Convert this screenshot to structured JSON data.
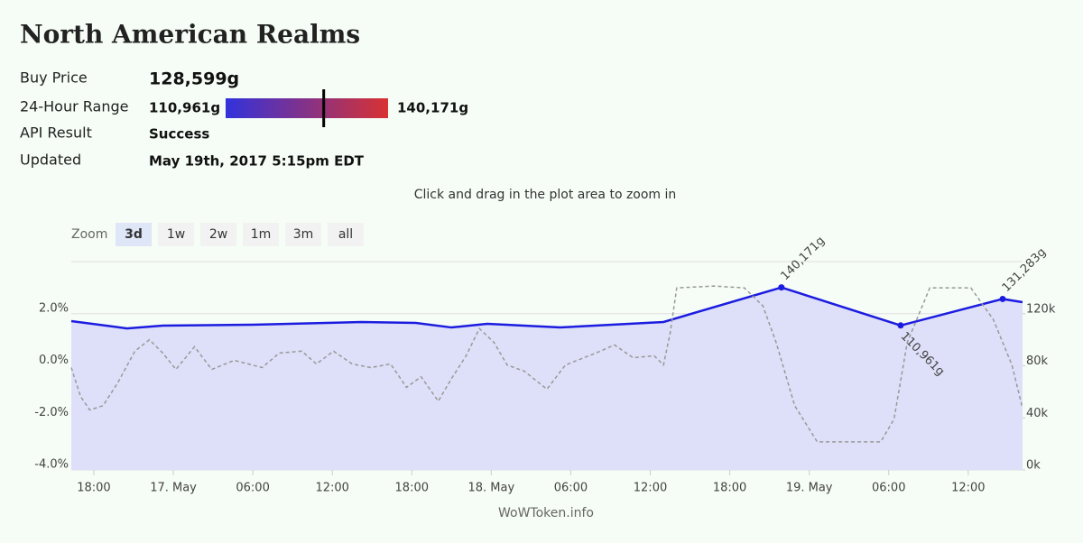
{
  "header": {
    "title": "North American Realms"
  },
  "info": {
    "buy_price": {
      "label": "Buy Price",
      "value": 128599,
      "text": "128,599g"
    },
    "range": {
      "label": "24-Hour Range",
      "low": {
        "value": 110961,
        "label": "110,961g"
      },
      "high": {
        "value": 140171,
        "label": "140,171g"
      }
    },
    "api": {
      "label": "API Result",
      "text": "Success"
    },
    "updated": {
      "label": "Updated",
      "text": "May 19th, 2017 5:15pm EDT"
    }
  },
  "chart_data": {
    "type": "line",
    "subtitle": "Click and drag in the plot area to zoom in",
    "credit": "WoWToken.info",
    "zoom": {
      "label": "Zoom",
      "options": [
        "3d",
        "1w",
        "2w",
        "1m",
        "3m",
        "all"
      ],
      "selected": 0
    },
    "xlim": [
      16.3,
      88.1
    ],
    "xticks": [
      {
        "value": 18,
        "label": "18:00"
      },
      {
        "value": 24,
        "label": "17. May"
      },
      {
        "value": 30,
        "label": "06:00"
      },
      {
        "value": 36,
        "label": "12:00"
      },
      {
        "value": 42,
        "label": "18:00"
      },
      {
        "value": 48,
        "label": "18. May"
      },
      {
        "value": 54,
        "label": "06:00"
      },
      {
        "value": 60,
        "label": "12:00"
      },
      {
        "value": 66,
        "label": "18:00"
      },
      {
        "value": 72,
        "label": "19. May"
      },
      {
        "value": 78,
        "label": "06:00"
      },
      {
        "value": 84,
        "label": "12:00"
      }
    ],
    "ylim": [
      -4,
      4
    ],
    "yticks": [
      {
        "value": -4,
        "label": "-4.0%"
      },
      {
        "value": -2,
        "label": "-2.0%"
      },
      {
        "value": 0,
        "label": "0.0%"
      },
      {
        "value": 2,
        "label": "2.0%"
      }
    ],
    "y2lim": [
      0,
      160000
    ],
    "y2ticks": [
      {
        "value": 0,
        "label": "0k"
      },
      {
        "value": 40000,
        "label": "40k"
      },
      {
        "value": 80000,
        "label": "80k"
      },
      {
        "value": 120000,
        "label": "120k"
      }
    ],
    "grid": true,
    "series": [
      {
        "color": "#1c1ce0",
        "fill": "#dde0f8",
        "axis": "y2",
        "x": [
          16.3,
          20.5,
          23.2,
          30,
          38.2,
          42.3,
          45,
          47.7,
          53.2,
          61,
          69.9,
          78.9,
          86.6,
          88.1
        ],
        "values": [
          114300,
          108700,
          110800,
          111500,
          113600,
          112900,
          109400,
          112200,
          109400,
          113600,
          140171,
          110961,
          131283,
          128800
        ],
        "value_labels": [
          null,
          null,
          null,
          null,
          null,
          null,
          null,
          null,
          null,
          null,
          "140,171g",
          "110,961g",
          "131,283g",
          null
        ]
      },
      {
        "color": "#999999",
        "dashed": true,
        "x": [
          16.3,
          17.0,
          17.7,
          18.7,
          19.8,
          21.1,
          22.2,
          23.2,
          24.2,
          25.6,
          26.9,
          28.6,
          30.7,
          32.0,
          33.7,
          34.8,
          36.1,
          37.5,
          38.9,
          40.4,
          41.6,
          42.7,
          44.0,
          45.0,
          46.1,
          47.1,
          48.2,
          49.2,
          50.5,
          52.2,
          53.6,
          55.9,
          57.3,
          58.7,
          60.3,
          61.0,
          61.5,
          62.0,
          64.8,
          67.1,
          68.5,
          69.5,
          70.9,
          72.6,
          77.4,
          78.4,
          79.4,
          81.1,
          84.2,
          85.9,
          86.6,
          87.3,
          88.1
        ],
        "values": [
          -0.07,
          -1.18,
          -1.7,
          -1.53,
          -0.66,
          0.56,
          1.0,
          0.49,
          -0.14,
          0.73,
          -0.14,
          0.21,
          -0.07,
          0.49,
          0.56,
          0.07,
          0.56,
          0.07,
          -0.07,
          0.07,
          -0.83,
          -0.42,
          -1.36,
          -0.49,
          0.38,
          1.43,
          0.9,
          0.03,
          -0.21,
          -0.9,
          0.03,
          0.49,
          0.8,
          0.31,
          0.38,
          0.03,
          1.25,
          2.99,
          3.06,
          2.99,
          2.3,
          0.9,
          -1.53,
          -2.92,
          -2.92,
          -2.05,
          0.9,
          2.99,
          2.99,
          1.77,
          0.9,
          0.03,
          -1.63
        ]
      }
    ]
  }
}
